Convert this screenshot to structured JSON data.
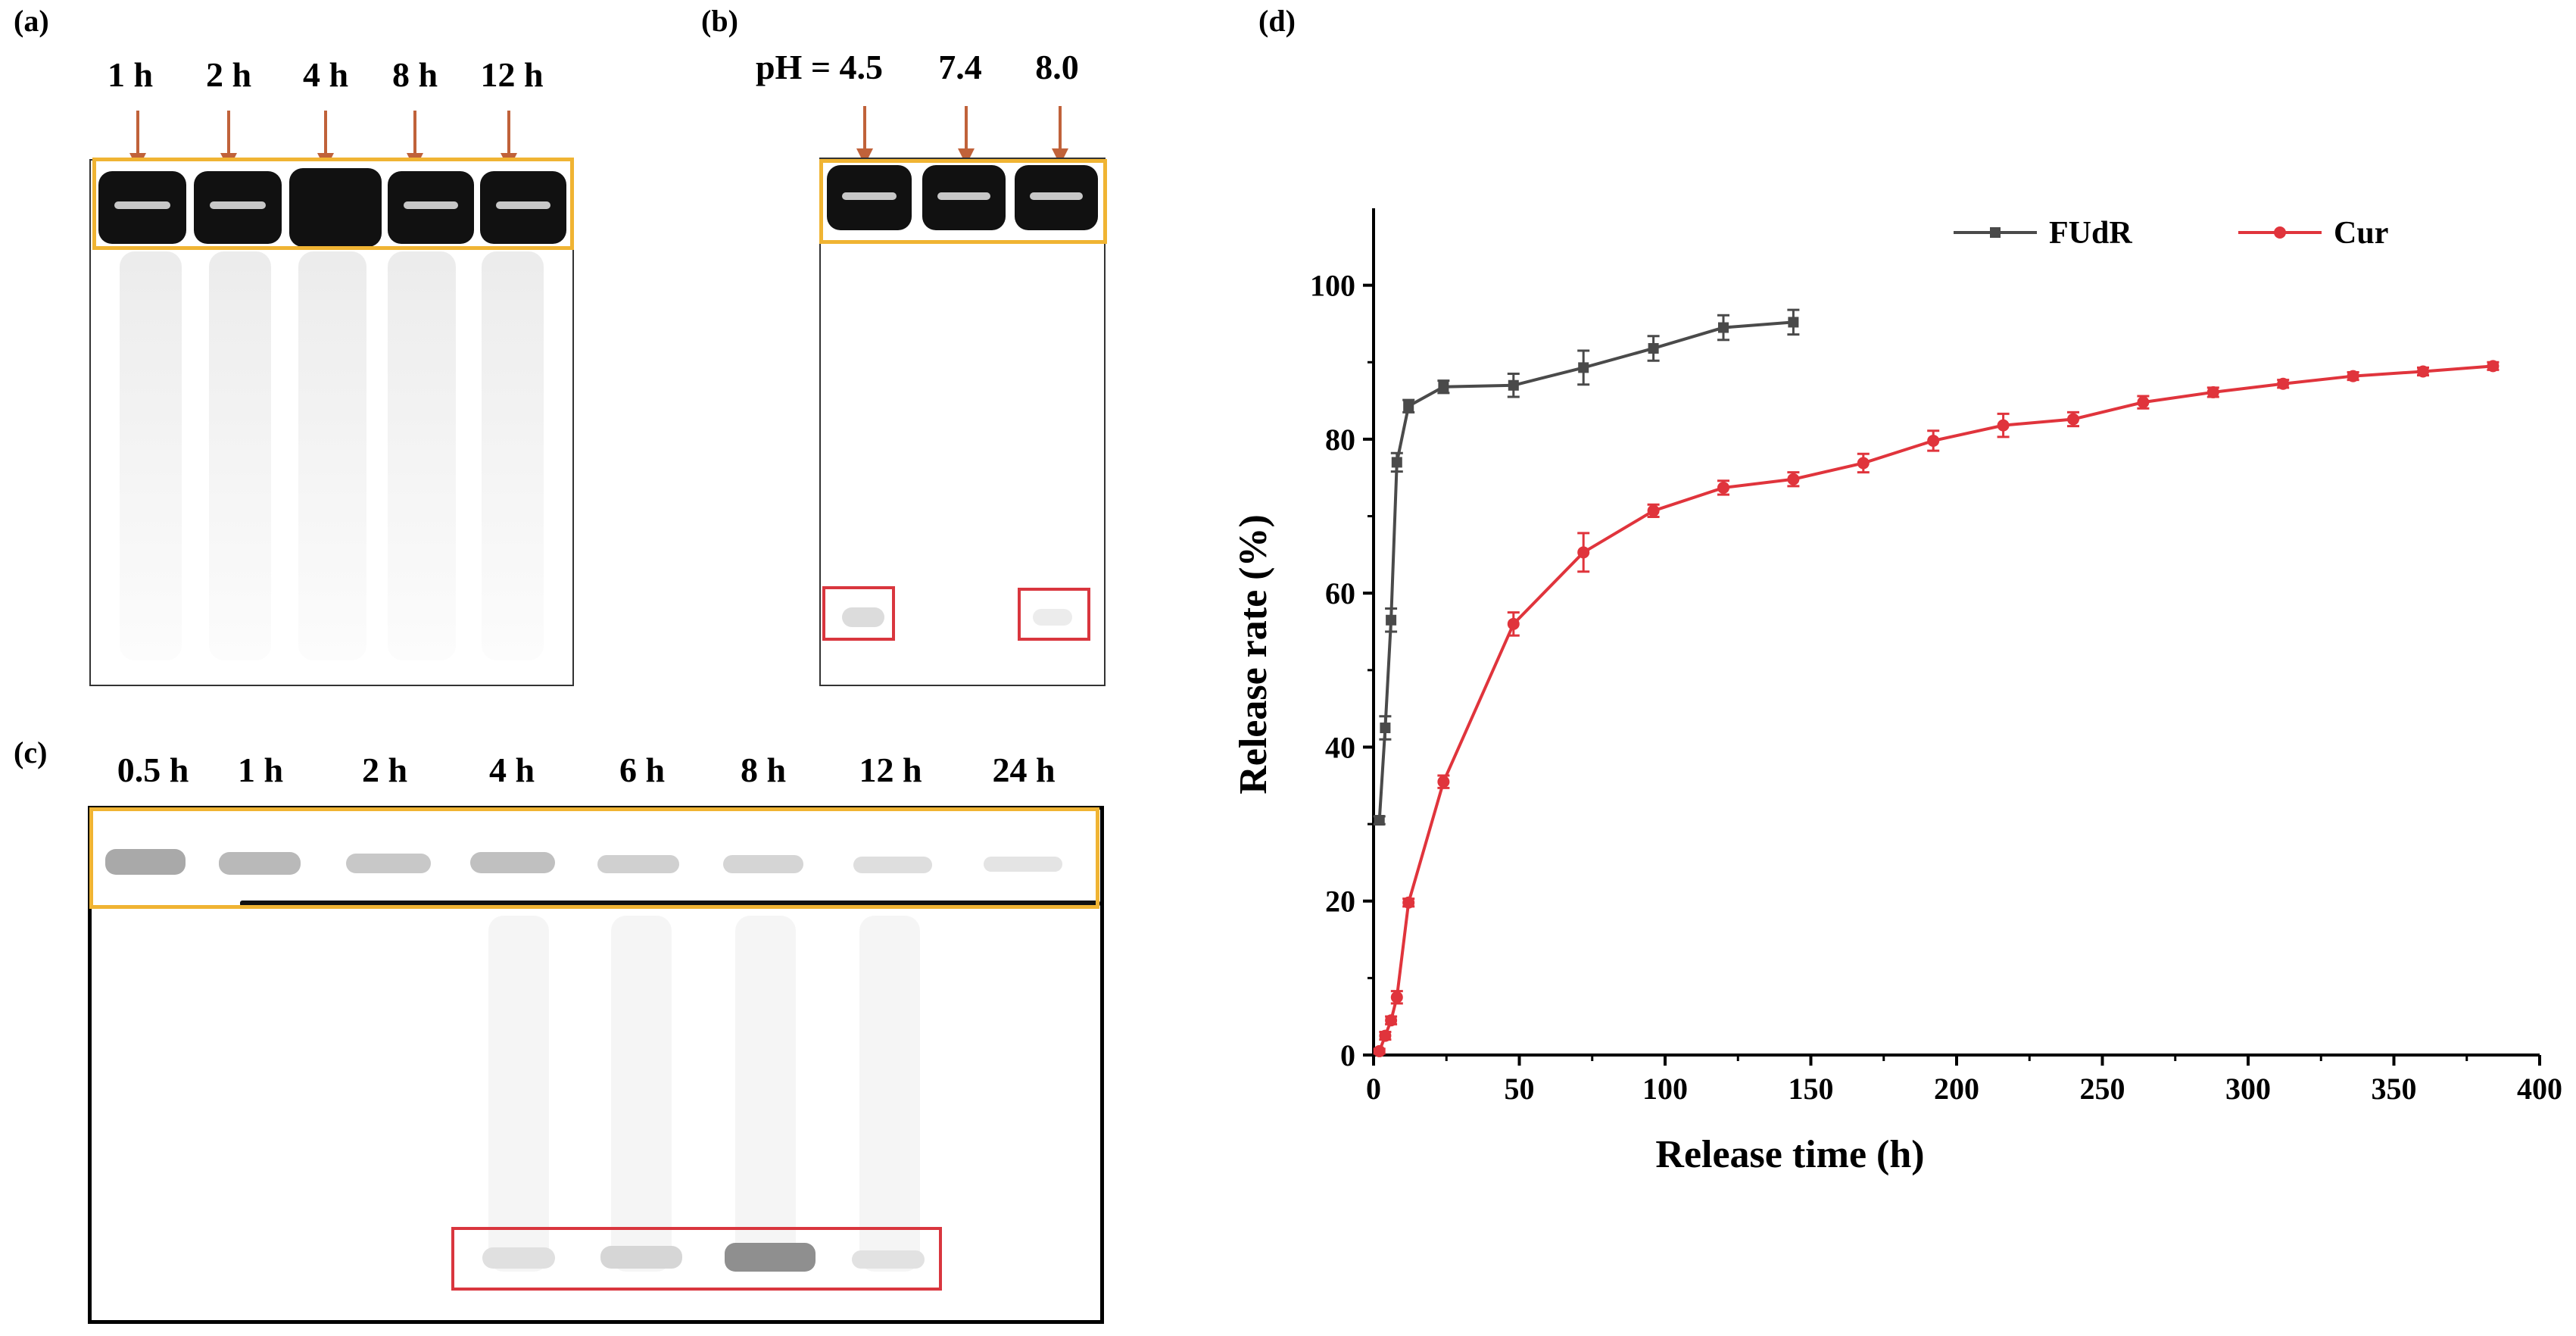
{
  "panels": {
    "a": {
      "label": "(a)",
      "lanes": [
        "1 h",
        "2 h",
        "4 h",
        "8 h",
        "12 h"
      ]
    },
    "b": {
      "label": "(b)",
      "lanes": [
        "pH = 4.5",
        "7.4",
        "8.0"
      ]
    },
    "c": {
      "label": "(c)",
      "lanes": [
        "0.5 h",
        "1 h",
        "2 h",
        "4 h",
        "6 h",
        "8 h",
        "12 h",
        "24 h"
      ]
    },
    "d": {
      "label": "(d)"
    }
  },
  "colors": {
    "arrow": "#c0623a",
    "highlight_box_yellow": "#f0b433",
    "highlight_box_red": "#d9363e",
    "fudr": "#4a4a4a",
    "cur": "#e0343c"
  },
  "chart_data": {
    "type": "line",
    "title": "",
    "xlabel": "Release time (h)",
    "ylabel": "Release rate (%)",
    "xlim": [
      0,
      400
    ],
    "ylim": [
      0,
      110
    ],
    "xticks": [
      0,
      50,
      100,
      150,
      200,
      250,
      300,
      350,
      400
    ],
    "yticks": [
      0,
      20,
      40,
      60,
      80,
      100
    ],
    "legend_position": "top-right",
    "series": [
      {
        "name": "FUdR",
        "marker": "square",
        "x": [
          2,
          4,
          6,
          8,
          12,
          24,
          48,
          72,
          96,
          120,
          144
        ],
        "y": [
          30.5,
          42.5,
          56.5,
          77,
          84.3,
          86.8,
          87,
          89.3,
          91.8,
          94.5,
          95.2
        ],
        "err": [
          0.5,
          1.5,
          1.5,
          1.2,
          0.8,
          0.8,
          1.5,
          2.2,
          1.6,
          1.6,
          1.6
        ]
      },
      {
        "name": "Cur",
        "marker": "circle",
        "x": [
          2,
          4,
          6,
          8,
          12,
          24,
          48,
          72,
          96,
          120,
          144,
          168,
          192,
          216,
          240,
          264,
          288,
          312,
          336,
          360,
          384
        ],
        "y": [
          0.5,
          2.5,
          4.5,
          7.5,
          19.8,
          35.5,
          56,
          65.3,
          70.7,
          73.7,
          74.8,
          76.9,
          79.8,
          81.8,
          82.6,
          84.8,
          86.1,
          87.2,
          88.2,
          88.8,
          89.5
        ],
        "err": [
          0.3,
          0.5,
          0.5,
          0.8,
          0.5,
          0.8,
          1.5,
          2.5,
          0.8,
          0.9,
          0.9,
          1.2,
          1.3,
          1.5,
          0.9,
          0.8,
          0.6,
          0.5,
          0.5,
          0.5,
          0.5
        ]
      }
    ]
  }
}
